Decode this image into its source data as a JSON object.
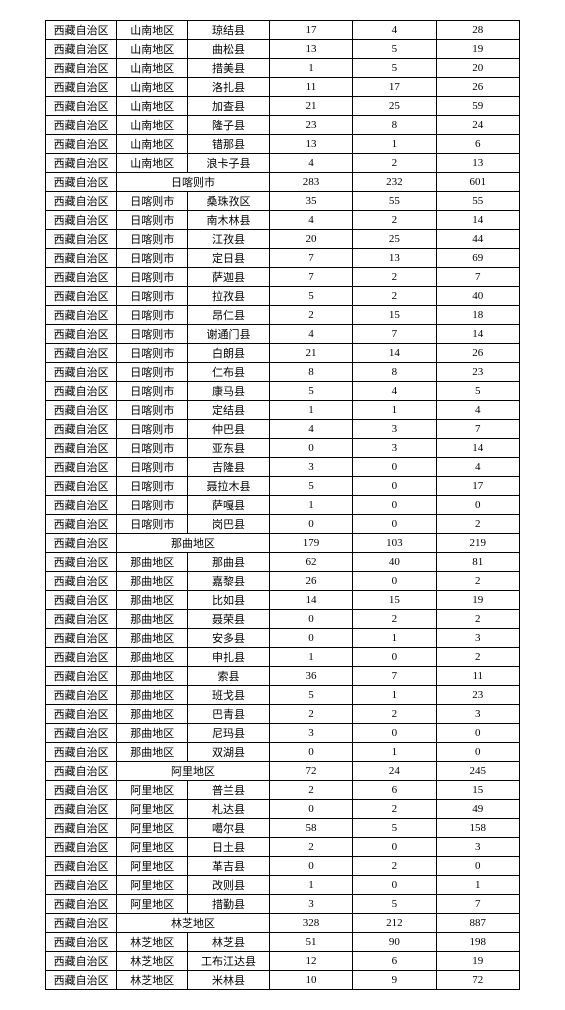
{
  "rows": [
    [
      "西藏自治区",
      "山南地区",
      "琼结县",
      "17",
      "4",
      "28"
    ],
    [
      "西藏自治区",
      "山南地区",
      "曲松县",
      "13",
      "5",
      "19"
    ],
    [
      "西藏自治区",
      "山南地区",
      "措美县",
      "1",
      "5",
      "20"
    ],
    [
      "西藏自治区",
      "山南地区",
      "洛扎县",
      "11",
      "17",
      "26"
    ],
    [
      "西藏自治区",
      "山南地区",
      "加查县",
      "21",
      "25",
      "59"
    ],
    [
      "西藏自治区",
      "山南地区",
      "隆子县",
      "23",
      "8",
      "24"
    ],
    [
      "西藏自治区",
      "山南地区",
      "错那县",
      "13",
      "1",
      "6"
    ],
    [
      "西藏自治区",
      "山南地区",
      "浪卡子县",
      "4",
      "2",
      "13"
    ],
    [
      "西藏自治区",
      "日喀则市",
      "",
      "283",
      "232",
      "601"
    ],
    [
      "西藏自治区",
      "日喀则市",
      "桑珠孜区",
      "35",
      "55",
      "55"
    ],
    [
      "西藏自治区",
      "日喀则市",
      "南木林县",
      "4",
      "2",
      "14"
    ],
    [
      "西藏自治区",
      "日喀则市",
      "江孜县",
      "20",
      "25",
      "44"
    ],
    [
      "西藏自治区",
      "日喀则市",
      "定日县",
      "7",
      "13",
      "69"
    ],
    [
      "西藏自治区",
      "日喀则市",
      "萨迦县",
      "7",
      "2",
      "7"
    ],
    [
      "西藏自治区",
      "日喀则市",
      "拉孜县",
      "5",
      "2",
      "40"
    ],
    [
      "西藏自治区",
      "日喀则市",
      "昂仁县",
      "2",
      "15",
      "18"
    ],
    [
      "西藏自治区",
      "日喀则市",
      "谢通门县",
      "4",
      "7",
      "14"
    ],
    [
      "西藏自治区",
      "日喀则市",
      "白朗县",
      "21",
      "14",
      "26"
    ],
    [
      "西藏自治区",
      "日喀则市",
      "仁布县",
      "8",
      "8",
      "23"
    ],
    [
      "西藏自治区",
      "日喀则市",
      "康马县",
      "5",
      "4",
      "5"
    ],
    [
      "西藏自治区",
      "日喀则市",
      "定结县",
      "1",
      "1",
      "4"
    ],
    [
      "西藏自治区",
      "日喀则市",
      "仲巴县",
      "4",
      "3",
      "7"
    ],
    [
      "西藏自治区",
      "日喀则市",
      "亚东县",
      "0",
      "3",
      "14"
    ],
    [
      "西藏自治区",
      "日喀则市",
      "吉隆县",
      "3",
      "0",
      "4"
    ],
    [
      "西藏自治区",
      "日喀则市",
      "聂拉木县",
      "5",
      "0",
      "17"
    ],
    [
      "西藏自治区",
      "日喀则市",
      "萨嘎县",
      "1",
      "0",
      "0"
    ],
    [
      "西藏自治区",
      "日喀则市",
      "岗巴县",
      "0",
      "0",
      "2"
    ],
    [
      "西藏自治区",
      "那曲地区",
      "",
      "179",
      "103",
      "219"
    ],
    [
      "西藏自治区",
      "那曲地区",
      "那曲县",
      "62",
      "40",
      "81"
    ],
    [
      "西藏自治区",
      "那曲地区",
      "嘉黎县",
      "26",
      "0",
      "2"
    ],
    [
      "西藏自治区",
      "那曲地区",
      "比如县",
      "14",
      "15",
      "19"
    ],
    [
      "西藏自治区",
      "那曲地区",
      "聂荣县",
      "0",
      "2",
      "2"
    ],
    [
      "西藏自治区",
      "那曲地区",
      "安多县",
      "0",
      "1",
      "3"
    ],
    [
      "西藏自治区",
      "那曲地区",
      "申扎县",
      "1",
      "0",
      "2"
    ],
    [
      "西藏自治区",
      "那曲地区",
      "索县",
      "36",
      "7",
      "11"
    ],
    [
      "西藏自治区",
      "那曲地区",
      "班戈县",
      "5",
      "1",
      "23"
    ],
    [
      "西藏自治区",
      "那曲地区",
      "巴青县",
      "2",
      "2",
      "3"
    ],
    [
      "西藏自治区",
      "那曲地区",
      "尼玛县",
      "3",
      "0",
      "0"
    ],
    [
      "西藏自治区",
      "那曲地区",
      "双湖县",
      "0",
      "1",
      "0"
    ],
    [
      "西藏自治区",
      "阿里地区",
      "",
      "72",
      "24",
      "245"
    ],
    [
      "西藏自治区",
      "阿里地区",
      "普兰县",
      "2",
      "6",
      "15"
    ],
    [
      "西藏自治区",
      "阿里地区",
      "札达县",
      "0",
      "2",
      "49"
    ],
    [
      "西藏自治区",
      "阿里地区",
      "噶尔县",
      "58",
      "5",
      "158"
    ],
    [
      "西藏自治区",
      "阿里地区",
      "日土县",
      "2",
      "0",
      "3"
    ],
    [
      "西藏自治区",
      "阿里地区",
      "革吉县",
      "0",
      "2",
      "0"
    ],
    [
      "西藏自治区",
      "阿里地区",
      "改则县",
      "1",
      "0",
      "1"
    ],
    [
      "西藏自治区",
      "阿里地区",
      "措勤县",
      "3",
      "5",
      "7"
    ],
    [
      "西藏自治区",
      "林芝地区",
      "",
      "328",
      "212",
      "887"
    ],
    [
      "西藏自治区",
      "林芝地区",
      "林芝县",
      "51",
      "90",
      "198"
    ],
    [
      "西藏自治区",
      "林芝地区",
      "工布江达县",
      "12",
      "6",
      "19"
    ],
    [
      "西藏自治区",
      "林芝地区",
      "米林县",
      "10",
      "9",
      "72"
    ]
  ],
  "summaryRows": [
    8,
    27,
    39,
    47
  ]
}
